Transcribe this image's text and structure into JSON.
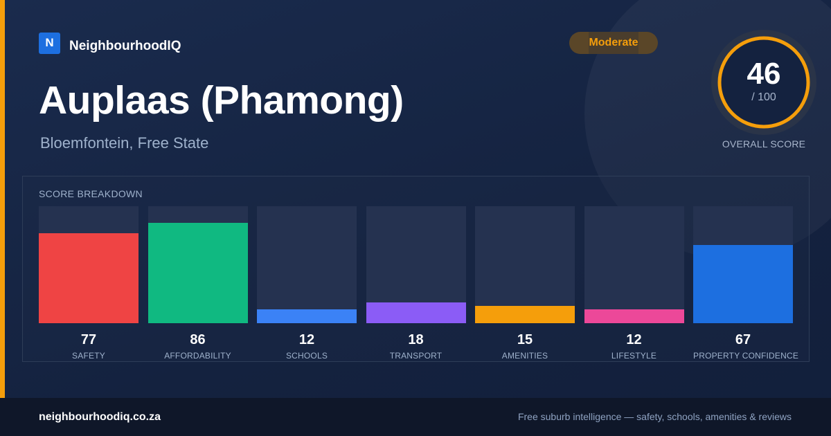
{
  "brand": {
    "logo_letter": "N",
    "name": "NeighbourhoodIQ"
  },
  "badge": {
    "label": "Moderate",
    "color": "#f59e0b"
  },
  "suburb": {
    "title": "Auplaas (Phamong)",
    "location": "Bloemfontein, Free State"
  },
  "overall": {
    "score": "46",
    "max": "/ 100",
    "label": "OVERALL SCORE",
    "score_value": 46,
    "max_value": 100,
    "ring_color": "#f59e0b"
  },
  "breakdown": {
    "title": "SCORE BREAKDOWN",
    "items": [
      {
        "label": "SAFETY",
        "value": 77,
        "color": "#ef4444"
      },
      {
        "label": "AFFORDABILITY",
        "value": 86,
        "color": "#10b981"
      },
      {
        "label": "SCHOOLS",
        "value": 12,
        "color": "#3b82f6"
      },
      {
        "label": "TRANSPORT",
        "value": 18,
        "color": "#8b5cf6"
      },
      {
        "label": "AMENITIES",
        "value": 15,
        "color": "#f59e0b"
      },
      {
        "label": "LIFESTYLE",
        "value": 12,
        "color": "#ec4899"
      },
      {
        "label": "PROPERTY CONFIDENCE",
        "value": 67,
        "color": "#1d6fe0"
      }
    ]
  },
  "footer": {
    "url": "neighbourhoodiq.co.za",
    "tagline": "Free suburb intelligence — safety, schools, amenities & reviews"
  }
}
